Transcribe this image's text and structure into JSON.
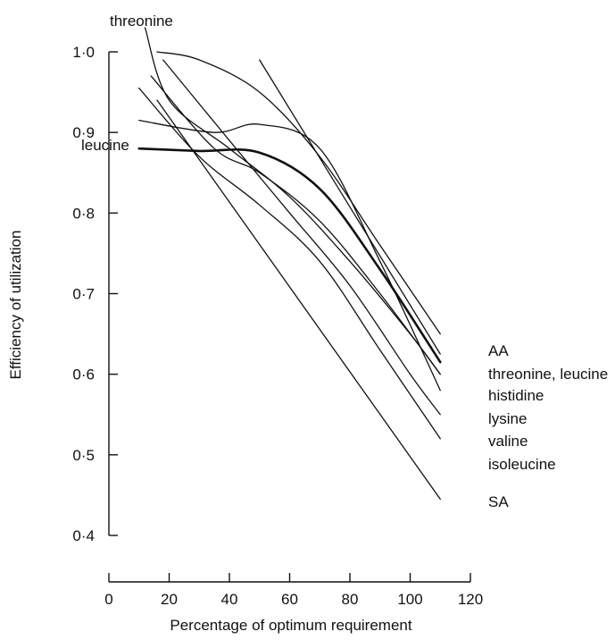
{
  "chart_data": {
    "type": "line",
    "title": "",
    "xlabel": "Percentage of optimum requirement",
    "ylabel": "Efficiency of utilization",
    "xlim": [
      0,
      120
    ],
    "ylim": [
      0.4,
      1.0
    ],
    "x_ticks": [
      {
        "value": 0,
        "label": "0"
      },
      {
        "value": 20,
        "label": "20"
      },
      {
        "value": 40,
        "label": "40"
      },
      {
        "value": 60,
        "label": "60"
      },
      {
        "value": 80,
        "label": "80"
      },
      {
        "value": 100,
        "label": "100"
      },
      {
        "value": 120,
        "label": "120"
      }
    ],
    "y_ticks": [
      {
        "value": 0.4,
        "label": "0·4"
      },
      {
        "value": 0.5,
        "label": "0·5"
      },
      {
        "value": 0.6,
        "label": "0·6"
      },
      {
        "value": 0.7,
        "label": "0·7"
      },
      {
        "value": 0.8,
        "label": "0·8"
      },
      {
        "value": 0.9,
        "label": "0·9"
      },
      {
        "value": 1.0,
        "label": "1·0"
      }
    ],
    "grid": false,
    "legend": "none",
    "series": [
      {
        "name": "AA",
        "bold": false,
        "x": [
          16,
          30,
          50,
          70,
          90,
          110
        ],
        "y": [
          1.0,
          0.99,
          0.95,
          0.87,
          0.76,
          0.65
        ]
      },
      {
        "name": "threonine, leucine",
        "bold": true,
        "x": [
          10,
          30,
          50,
          70,
          90,
          110
        ],
        "y": [
          0.88,
          0.877,
          0.875,
          0.83,
          0.73,
          0.615
        ]
      },
      {
        "name": "histidine",
        "bold": false,
        "x": [
          14,
          35,
          50,
          70,
          90,
          110
        ],
        "y": [
          0.97,
          0.88,
          0.85,
          0.79,
          0.7,
          0.6
        ]
      },
      {
        "name": "lysine",
        "bold": false,
        "x": [
          10,
          35,
          50,
          70,
          90,
          110
        ],
        "y": [
          0.915,
          0.9,
          0.91,
          0.88,
          0.74,
          0.58
        ]
      },
      {
        "name": "valine",
        "bold": false,
        "x": [
          18,
          40,
          60,
          80,
          100,
          110
        ],
        "y": [
          0.99,
          0.89,
          0.8,
          0.71,
          0.6,
          0.55
        ]
      },
      {
        "name": "isoleucine",
        "bold": false,
        "x": [
          10,
          30,
          50,
          70,
          90,
          110
        ],
        "y": [
          0.955,
          0.87,
          0.81,
          0.74,
          0.63,
          0.52
        ]
      },
      {
        "name": "SA",
        "bold": false,
        "x": [
          16,
          110
        ],
        "y": [
          0.94,
          0.445
        ]
      },
      {
        "name": "threonine",
        "bold": false,
        "x": [
          12,
          20,
          40,
          60,
          80,
          100,
          110
        ],
        "y": [
          1.03,
          0.94,
          0.88,
          0.82,
          0.74,
          0.65,
          0.6
        ]
      },
      {
        "name": "leucine",
        "bold": false,
        "x": [
          10,
          30,
          50,
          70,
          90,
          110
        ],
        "y": [
          0.88,
          0.877,
          0.875,
          0.83,
          0.73,
          0.615
        ]
      },
      {
        "name": "",
        "bold": false,
        "x": [
          50,
          110
        ],
        "y": [
          0.99,
          0.625
        ]
      }
    ]
  },
  "series_labels": {
    "aa": "AA",
    "threonine_leucine": "threonine, leucine",
    "histidine": "histidine",
    "lysine": "lysine",
    "valine": "valine",
    "isoleucine": "isoleucine",
    "sa": "SA",
    "threonine": "threonine",
    "leucine": "leucine"
  }
}
